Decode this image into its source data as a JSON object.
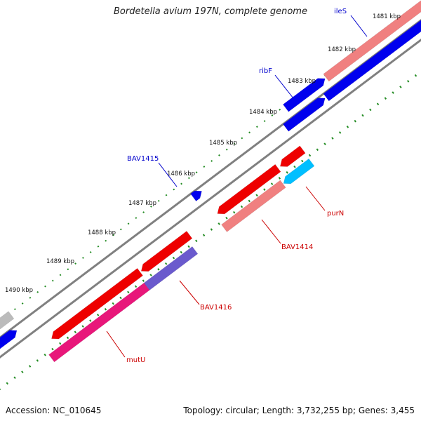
{
  "title": "Bordetella avium 197N, complete genome",
  "footer": {
    "accession": "Accession: NC_010645",
    "summary": "Topology: circular; Length: 3,732,255 bp; Genes: 3,455"
  },
  "colors": {
    "forward_gene": "#0000ee",
    "reverse_gene": "#ee0000",
    "reverse_gene_light": "#f08080",
    "cyan_gene": "#00bfff",
    "magenta_gene": "#e8177a",
    "purple_gene": "#6a5acd",
    "grey_gene": "#bbbbbb",
    "tick_green": "#228b22",
    "backbone": "#808080",
    "label_blue": "#0000cc",
    "label_red": "#cc0000"
  },
  "ruler": {
    "ticks": [
      "1481 kbp",
      "1482 kbp",
      "1483 kbp",
      "1484 kbp",
      "1485 kbp",
      "1486 kbp",
      "1487 kbp",
      "1488 kbp",
      "1489 kbp",
      "1490 kbp"
    ]
  },
  "gene_labels": [
    {
      "name": "ileS",
      "strand": "forward"
    },
    {
      "name": "ribF",
      "strand": "forward"
    },
    {
      "name": "BAV1415",
      "strand": "forward"
    },
    {
      "name": "purN",
      "strand": "reverse"
    },
    {
      "name": "BAV1414",
      "strand": "reverse"
    },
    {
      "name": "BAV1416",
      "strand": "reverse"
    },
    {
      "name": "mutU",
      "strand": "reverse"
    }
  ]
}
